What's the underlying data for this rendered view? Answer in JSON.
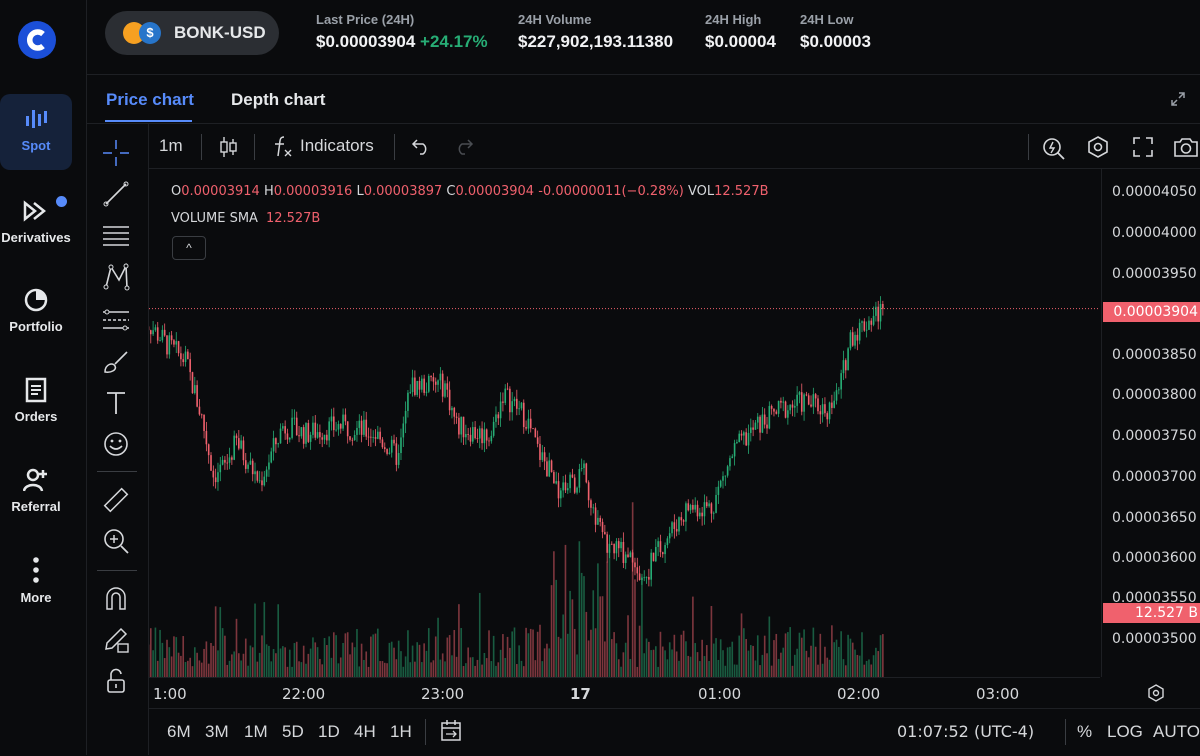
{
  "sidebar": {
    "items": [
      {
        "label": "Spot",
        "icon": "spot-chart-icon",
        "active": true
      },
      {
        "label": "Derivatives",
        "icon": "derivatives-icon",
        "badge": true
      },
      {
        "label": "Portfolio",
        "icon": "portfolio-pie-icon"
      },
      {
        "label": "Orders",
        "icon": "orders-document-icon"
      },
      {
        "label": "Referral",
        "icon": "referral-add-user-icon"
      },
      {
        "label": "More",
        "icon": "more-vertical-icon"
      }
    ]
  },
  "header": {
    "pair": "BONK-USD",
    "coin_badge_text": "$",
    "stats": [
      {
        "label": "Last Price (24H)",
        "value": "$0.00003904",
        "change": "+24.17%"
      },
      {
        "label": "24H Volume",
        "value": "$227,902,193.11380"
      },
      {
        "label": "24H High",
        "value": "$0.00004"
      },
      {
        "label": "24H Low",
        "value": "$0.00003"
      }
    ]
  },
  "tabs": [
    {
      "label": "Price chart",
      "active": true
    },
    {
      "label": "Depth chart",
      "active": false
    }
  ],
  "chart_toolbar": {
    "interval": "1m",
    "indicators_label": "Indicators"
  },
  "legend": {
    "o_key": "O",
    "o_val": "0.00003914",
    "h_key": "H",
    "h_val": "0.00003916",
    "l_key": "L",
    "l_val": "0.00003897",
    "c_key": "C",
    "c_val": "0.00003904",
    "change": "-0.00000011",
    "change_pct": "(−0.28%)",
    "vol_key": "VOL",
    "vol_val": "12.527B",
    "sma_label": "VOLUME SMA",
    "sma_val": "12.527B",
    "collapse_glyph": "^"
  },
  "price_axis": {
    "ticks": [
      "0.00004050",
      "0.00004000",
      "0.00003950",
      "0.00003900",
      "0.00003850",
      "0.00003800",
      "0.00003750",
      "0.00003700",
      "0.00003650",
      "0.00003600",
      "0.00003550",
      "0.00003500"
    ],
    "current_price_label": "0.00003904",
    "volume_label": "12.527 B"
  },
  "time_axis": {
    "ticks": [
      "1:00",
      "22:00",
      "23:00",
      "17",
      "01:00",
      "02:00",
      "03:00"
    ]
  },
  "bottom_bar": {
    "ranges": [
      "6M",
      "3M",
      "1M",
      "5D",
      "1D",
      "4H",
      "1H"
    ],
    "clock": "01:07:52 (UTC-4)",
    "percent": "%",
    "log": "LOG",
    "auto": "AUTO"
  },
  "colors": {
    "accent": "#578bfa",
    "up": "#27ad75",
    "down": "#f0616d",
    "background": "#0a0b0d"
  },
  "chart_data": {
    "type": "candlestick",
    "y_range": [
      3.48e-05,
      4.07e-05
    ],
    "x_range": [
      "20:48",
      "03:40"
    ],
    "last_close": 3.904e-05,
    "grid": false,
    "price_path": [
      [
        "20:49",
        3.895e-05
      ],
      [
        "21:00",
        3.86e-05
      ],
      [
        "21:08",
        3.84e-05
      ],
      [
        "21:15",
        3.77e-05
      ],
      [
        "21:20",
        3.7e-05
      ],
      [
        "21:25",
        3.71e-05
      ],
      [
        "21:30",
        3.74e-05
      ],
      [
        "21:40",
        3.69e-05
      ],
      [
        "21:50",
        3.76e-05
      ],
      [
        "22:00",
        3.75e-05
      ],
      [
        "22:15",
        3.76e-05
      ],
      [
        "22:30",
        3.75e-05
      ],
      [
        "22:40",
        3.72e-05
      ],
      [
        "22:45",
        3.81e-05
      ],
      [
        "23:00",
        3.81e-05
      ],
      [
        "23:05",
        3.76e-05
      ],
      [
        "23:15",
        3.75e-05
      ],
      [
        "23:20",
        3.75e-05
      ],
      [
        "23:25",
        3.8e-05
      ],
      [
        "23:35",
        3.77e-05
      ],
      [
        "23:40",
        3.73e-05
      ],
      [
        "23:50",
        3.68e-05
      ],
      [
        "24:00",
        3.7e-05
      ],
      [
        "24:08",
        3.62e-05
      ],
      [
        "24:12",
        3.61e-05
      ],
      [
        "24:22",
        3.6e-05
      ],
      [
        "24:25",
        3.57e-05
      ],
      [
        "24:35",
        3.62e-05
      ],
      [
        "24:45",
        3.66e-05
      ],
      [
        "24:55",
        3.66e-05
      ],
      [
        "25:05",
        3.73e-05
      ],
      [
        "25:15",
        3.76e-05
      ],
      [
        "25:25",
        3.78e-05
      ],
      [
        "25:35",
        3.79e-05
      ],
      [
        "25:45",
        3.78e-05
      ],
      [
        "25:50",
        3.8e-05
      ],
      [
        "25:55",
        3.87e-05
      ],
      [
        "26:05",
        3.895e-05
      ],
      [
        "26:09",
        3.904e-05
      ]
    ],
    "volume": {
      "recent_value": "12.527B"
    }
  }
}
